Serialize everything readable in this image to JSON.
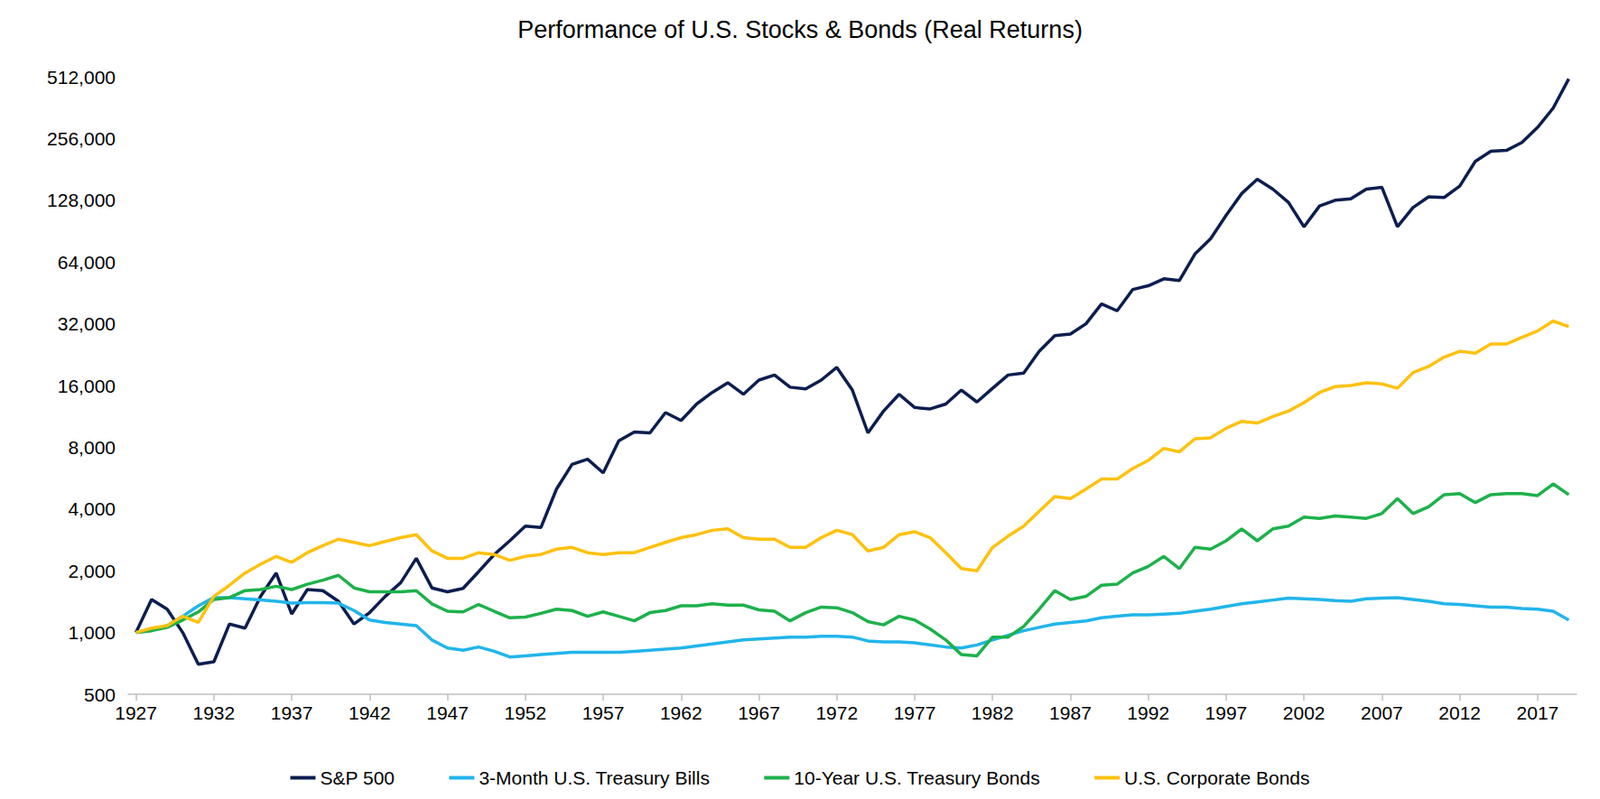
{
  "chart_data": {
    "type": "line",
    "title": "Performance of U.S. Stocks & Bonds (Real Returns)",
    "categories": [
      "1927",
      null,
      null,
      null,
      null,
      "1932",
      null,
      null,
      null,
      null,
      "1937",
      null,
      null,
      null,
      null,
      "1942",
      null,
      null,
      null,
      null,
      "1947",
      null,
      null,
      null,
      null,
      "1952",
      null,
      null,
      null,
      null,
      "1957",
      null,
      null,
      null,
      null,
      "1962",
      null,
      null,
      null,
      null,
      "1967",
      null,
      null,
      null,
      null,
      "1972",
      null,
      null,
      null,
      null,
      "1977",
      null,
      null,
      null,
      null,
      "1982",
      null,
      null,
      null,
      null,
      "1987",
      null,
      null,
      null,
      null,
      "1992",
      null,
      null,
      null,
      null,
      "1997",
      null,
      null,
      null,
      null,
      "2002",
      null,
      null,
      null,
      null,
      "2007",
      null,
      null,
      null,
      null,
      "2012",
      null,
      null,
      null,
      null,
      "2017",
      null,
      null
    ],
    "series": [
      {
        "name": "S&P 500",
        "color": "#0c1e50",
        "values": [
          1000,
          1450,
          1300,
          1000,
          700,
          720,
          1100,
          1050,
          1500,
          1950,
          1230,
          1620,
          1600,
          1420,
          1100,
          1250,
          1500,
          1750,
          2300,
          1650,
          1580,
          1640,
          1980,
          2400,
          2800,
          3300,
          3250,
          5000,
          6600,
          7000,
          6000,
          8600,
          9500,
          9400,
          11800,
          10800,
          13000,
          14800,
          16500,
          14500,
          17000,
          18000,
          15700,
          15400,
          17000,
          19600,
          15200,
          9400,
          12000,
          14500,
          12500,
          12300,
          13000,
          15200,
          13300,
          15500,
          18000,
          18400,
          23500,
          28000,
          28500,
          32000,
          40000,
          37000,
          47000,
          49000,
          53000,
          52000,
          70000,
          83000,
          108000,
          138000,
          162000,
          145000,
          125000,
          95000,
          120000,
          128000,
          130000,
          145000,
          148000,
          95000,
          118000,
          133000,
          132000,
          150000,
          198000,
          222000,
          224000,
          245000,
          290000,
          360000,
          500000
        ]
      },
      {
        "name": "3-Month U.S. Treasury Bills",
        "color": "#21b5ea",
        "values": [
          1000,
          1030,
          1080,
          1200,
          1350,
          1480,
          1480,
          1460,
          1440,
          1420,
          1390,
          1400,
          1400,
          1390,
          1280,
          1150,
          1120,
          1100,
          1080,
          920,
          840,
          820,
          850,
          810,
          760,
          770,
          780,
          790,
          800,
          800,
          800,
          800,
          810,
          820,
          830,
          840,
          860,
          880,
          900,
          920,
          930,
          940,
          950,
          950,
          960,
          960,
          950,
          910,
          900,
          900,
          890,
          870,
          850,
          840,
          870,
          920,
          970,
          1020,
          1060,
          1100,
          1120,
          1140,
          1180,
          1200,
          1220,
          1220,
          1230,
          1240,
          1270,
          1300,
          1340,
          1380,
          1410,
          1440,
          1470,
          1460,
          1450,
          1430,
          1420,
          1460,
          1470,
          1480,
          1450,
          1420,
          1380,
          1370,
          1350,
          1330,
          1330,
          1310,
          1300,
          1270,
          1150
        ]
      },
      {
        "name": "10-Year U.S. Treasury Bonds",
        "color": "#1db14b",
        "values": [
          1000,
          1020,
          1060,
          1150,
          1260,
          1450,
          1480,
          1600,
          1620,
          1680,
          1620,
          1720,
          1800,
          1900,
          1650,
          1580,
          1580,
          1580,
          1600,
          1380,
          1270,
          1260,
          1370,
          1270,
          1180,
          1190,
          1240,
          1300,
          1280,
          1200,
          1260,
          1200,
          1140,
          1250,
          1280,
          1350,
          1350,
          1380,
          1360,
          1360,
          1290,
          1270,
          1140,
          1250,
          1330,
          1320,
          1250,
          1130,
          1090,
          1200,
          1150,
          1040,
          920,
          780,
          770,
          950,
          950,
          1070,
          1300,
          1600,
          1450,
          1500,
          1700,
          1720,
          1950,
          2100,
          2350,
          2050,
          2600,
          2550,
          2800,
          3200,
          2800,
          3200,
          3300,
          3650,
          3600,
          3700,
          3650,
          3600,
          3800,
          4500,
          3800,
          4100,
          4700,
          4750,
          4300,
          4700,
          4750,
          4750,
          4650,
          5300,
          4700
        ]
      },
      {
        "name": "U.S. Corporate Bonds",
        "color": "#fec10d",
        "values": [
          1000,
          1050,
          1080,
          1200,
          1120,
          1500,
          1700,
          1950,
          2150,
          2350,
          2200,
          2450,
          2650,
          2850,
          2750,
          2650,
          2780,
          2900,
          3000,
          2500,
          2300,
          2300,
          2450,
          2400,
          2250,
          2350,
          2400,
          2550,
          2600,
          2450,
          2400,
          2450,
          2450,
          2600,
          2750,
          2900,
          3000,
          3150,
          3200,
          2900,
          2850,
          2850,
          2600,
          2600,
          2900,
          3150,
          3000,
          2500,
          2600,
          3000,
          3100,
          2900,
          2450,
          2050,
          2000,
          2600,
          2950,
          3300,
          3900,
          4600,
          4500,
          5000,
          5600,
          5600,
          6300,
          6900,
          7900,
          7600,
          8800,
          8900,
          9900,
          10700,
          10500,
          11300,
          12000,
          13200,
          14800,
          15800,
          16000,
          16500,
          16300,
          15500,
          18500,
          19800,
          22000,
          23500,
          23000,
          25500,
          25500,
          27500,
          29500,
          33000,
          31000
        ]
      }
    ],
    "ylim": [
      500,
      512000
    ],
    "yticks": [
      500,
      {
        "value": 1000,
        "label": "1,000"
      },
      {
        "value": 2000,
        "label": "2,000"
      },
      {
        "value": 4000,
        "label": "4,000"
      },
      {
        "value": 8000,
        "label": "8,000"
      },
      {
        "value": 16000,
        "label": "16,000"
      },
      {
        "value": 32000,
        "label": "32,000"
      },
      {
        "value": 64000,
        "label": "64,000"
      },
      {
        "value": 128000,
        "label": "128,000"
      },
      {
        "value": 256000,
        "label": "256,000"
      },
      {
        "value": 512000,
        "label": "512,000"
      }
    ],
    "log": "y",
    "grid": false,
    "legend": "bottom"
  }
}
